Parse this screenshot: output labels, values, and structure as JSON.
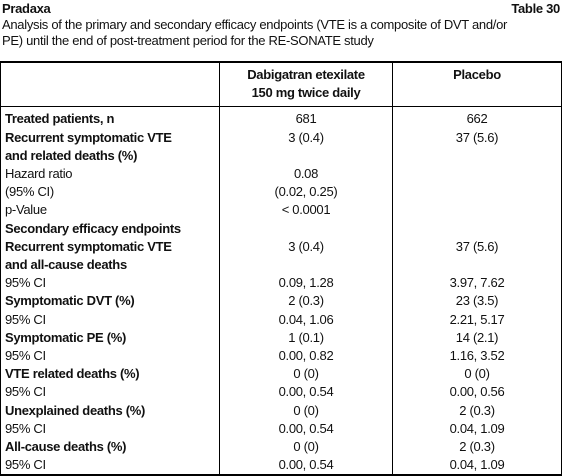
{
  "header": {
    "title": "Pradaxa",
    "table_label": "Table 30",
    "caption": "Analysis of the primary and secondary efficacy endpoints (VTE is a composite of DVT and/or PE) until the end of post-treatment period for the RE-SONATE study"
  },
  "table": {
    "columns": [
      [
        "Dabigatran etexilate",
        "150 mg twice daily"
      ],
      [
        "Placebo"
      ]
    ],
    "rows": [
      {
        "label": [
          "Treated patients, n"
        ],
        "bold": true,
        "values": [
          "681",
          "662"
        ]
      },
      {
        "label": [
          "Recurrent symptomatic VTE",
          "and related deaths (%)"
        ],
        "bold": true,
        "values": [
          "3 (0.4)",
          "37 (5.6)"
        ]
      },
      {
        "label": [
          "Hazard ratio"
        ],
        "bold": false,
        "values": [
          "0.08"
        ]
      },
      {
        "label": [
          "(95% CI)"
        ],
        "bold": false,
        "values": [
          "(0.02, 0.25)"
        ]
      },
      {
        "label": [
          "p-Value"
        ],
        "bold": false,
        "values": [
          "< 0.0001"
        ]
      },
      {
        "label": [
          "Secondary efficacy endpoints"
        ],
        "bold": true,
        "values": []
      },
      {
        "label": [
          "Recurrent symptomatic VTE",
          "and all-cause deaths"
        ],
        "bold": true,
        "values": [
          "3 (0.4)",
          "37 (5.6)"
        ]
      },
      {
        "label": [
          "95% CI"
        ],
        "bold": false,
        "values": [
          "0.09, 1.28",
          "3.97, 7.62"
        ]
      },
      {
        "label": [
          "Symptomatic DVT (%)"
        ],
        "bold": true,
        "values": [
          "2 (0.3)",
          "23 (3.5)"
        ]
      },
      {
        "label": [
          "95% CI"
        ],
        "bold": false,
        "values": [
          "0.04, 1.06",
          "2.21, 5.17"
        ]
      },
      {
        "label": [
          "Symptomatic PE (%)"
        ],
        "bold": true,
        "values": [
          "1 (0.1)",
          "14 (2.1)"
        ]
      },
      {
        "label": [
          "95% CI"
        ],
        "bold": false,
        "values": [
          "0.00, 0.82",
          "1.16, 3.52"
        ]
      },
      {
        "label": [
          "VTE related deaths (%)"
        ],
        "bold": true,
        "values": [
          "0 (0)",
          "0 (0)"
        ]
      },
      {
        "label": [
          "95% CI"
        ],
        "bold": false,
        "values": [
          "0.00, 0.54",
          "0.00, 0.56"
        ]
      },
      {
        "label": [
          "Unexplained deaths (%)"
        ],
        "bold": true,
        "values": [
          "0 (0)",
          "2 (0.3)"
        ]
      },
      {
        "label": [
          "95% CI"
        ],
        "bold": false,
        "values": [
          "0.00, 0.54",
          "0.04, 1.09"
        ]
      },
      {
        "label": [
          "All-cause deaths (%)"
        ],
        "bold": true,
        "values": [
          "0 (0)",
          "2 (0.3)"
        ]
      },
      {
        "label": [
          "95% CI"
        ],
        "bold": false,
        "values": [
          "0.00, 0.54",
          "0.04, 1.09"
        ]
      }
    ]
  }
}
